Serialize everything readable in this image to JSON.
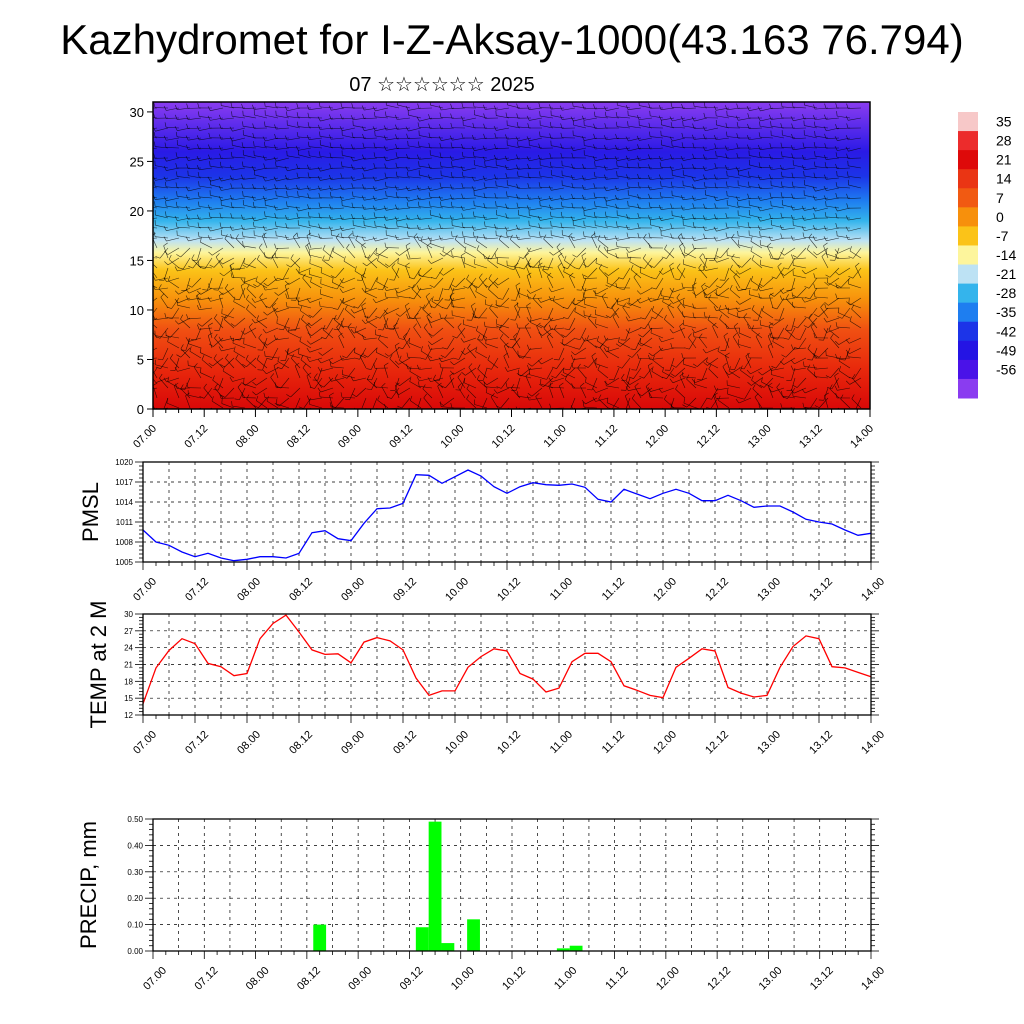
{
  "page": {
    "title": "Kazhydromet for I-Z-Aksay-1000(43.163 76.794)",
    "subtitle": "07 ☆☆☆☆☆☆ 2025"
  },
  "chart_data": [
    {
      "type": "heatmap",
      "description_of_overlay": "wind barbs",
      "y_ticks": [
        0,
        5,
        10,
        15,
        20,
        25,
        30
      ],
      "ylim": [
        0,
        31
      ],
      "x_tick_labels": [
        "07.00",
        "07.12",
        "08.00",
        "08.12",
        "09.00",
        "09.12",
        "10.00",
        "10.12",
        "11.00",
        "11.12",
        "12.00",
        "12.12",
        "13.00",
        "13.12",
        "14.00"
      ],
      "colorbar_labels": [
        "35",
        "28",
        "21",
        "14",
        "7",
        "0",
        "-7",
        "-14",
        "-21",
        "-28",
        "-35",
        "-42",
        "-49",
        "-56"
      ],
      "palette": [
        "#f7c8c8",
        "#ec2c2c",
        "#de0a0a",
        "#ea3514",
        "#f15a12",
        "#f7900c",
        "#fbc318",
        "#fdf59c",
        "#bde2f4",
        "#34b4ec",
        "#1e7ef0",
        "#1c34e8",
        "#2414e4",
        "#4a12e8",
        "#8a3cf0"
      ],
      "field_profile": [
        {
          "y": 0,
          "color": "#d90808"
        },
        {
          "y": 4,
          "color": "#e8280c"
        },
        {
          "y": 8,
          "color": "#f05012"
        },
        {
          "y": 11,
          "color": "#f7900c"
        },
        {
          "y": 14,
          "color": "#fbc318"
        },
        {
          "y": 15.8,
          "color": "#fdf59c"
        },
        {
          "y": 17,
          "color": "#bde2f4"
        },
        {
          "y": 19,
          "color": "#34b4ec"
        },
        {
          "y": 21,
          "color": "#1e7ef0"
        },
        {
          "y": 23.5,
          "color": "#1c34e8"
        },
        {
          "y": 26,
          "color": "#2a1ae6"
        },
        {
          "y": 31,
          "color": "#8a3cf0"
        }
      ]
    },
    {
      "type": "line",
      "ylabel": "PMSL",
      "ylim": [
        1005,
        1020
      ],
      "y_ticks": [
        1005,
        1008,
        1011,
        1014,
        1017,
        1020
      ],
      "x_tick_labels": [
        "07.00",
        "07.12",
        "08.00",
        "08.12",
        "09.00",
        "09.12",
        "10.00",
        "10.12",
        "11.00",
        "11.12",
        "12.00",
        "12.12",
        "13.00",
        "13.12",
        "14.00"
      ],
      "color": "#0000ff",
      "x": [
        0,
        3,
        6,
        9,
        12,
        15,
        18,
        21,
        24,
        27,
        30,
        33,
        36,
        39,
        42,
        45,
        48,
        51,
        54,
        57,
        60,
        63,
        66,
        69,
        72,
        75,
        78,
        81,
        84,
        87,
        90,
        93,
        96,
        99,
        102,
        105,
        108,
        111,
        114,
        117,
        120,
        123,
        126,
        129,
        132,
        135,
        138,
        141,
        144,
        147,
        150,
        153,
        156,
        159,
        162,
        165,
        168
      ],
      "values": [
        1009.8,
        1008,
        1007.5,
        1006.5,
        1005.8,
        1006.3,
        1005.6,
        1005.2,
        1005.4,
        1005.8,
        1005.8,
        1005.6,
        1006.3,
        1009.4,
        1009.7,
        1008.5,
        1008.2,
        1010.8,
        1013,
        1013.1,
        1013.8,
        1018.1,
        1018,
        1016.8,
        1017.8,
        1018.8,
        1017.9,
        1016.3,
        1015.3,
        1016.3,
        1016.9,
        1016.6,
        1016.5,
        1016.7,
        1016.2,
        1014.4,
        1014,
        1015.9,
        1015.2,
        1014.5,
        1015.3,
        1015.9,
        1015.3,
        1014.2,
        1014.2,
        1015,
        1014.2,
        1013.2,
        1013.4,
        1013.4,
        1012.5,
        1011.4,
        1011,
        1010.7,
        1009.8,
        1009,
        1009.3
      ]
    },
    {
      "type": "line",
      "ylabel": "TEMP at 2 M",
      "ylim": [
        12,
        30
      ],
      "y_ticks": [
        12,
        15,
        18,
        21,
        24,
        27,
        30
      ],
      "x_tick_labels": [
        "07.00",
        "07.12",
        "08.00",
        "08.12",
        "09.00",
        "09.12",
        "10.00",
        "10.12",
        "11.00",
        "11.12",
        "12.00",
        "12.12",
        "13.00",
        "13.12",
        "14.00"
      ],
      "color": "#ff0000",
      "x": [
        0,
        3,
        6,
        9,
        12,
        15,
        18,
        21,
        24,
        27,
        30,
        33,
        36,
        39,
        42,
        45,
        48,
        51,
        54,
        57,
        60,
        63,
        66,
        69,
        72,
        75,
        78,
        81,
        84,
        87,
        90,
        93,
        96,
        99,
        102,
        105,
        108,
        111,
        114,
        117,
        120,
        123,
        126,
        129,
        132,
        135,
        138,
        141,
        144,
        147,
        150,
        153,
        156,
        159,
        162,
        165,
        168
      ],
      "values": [
        14,
        20.4,
        23.5,
        25.6,
        24.7,
        21.2,
        20.6,
        19,
        19.4,
        25.6,
        28.3,
        29.8,
        26.8,
        23.6,
        22.8,
        22.9,
        21.3,
        25,
        25.8,
        25.2,
        23.6,
        18.6,
        15.5,
        16.3,
        16.3,
        20.5,
        22.4,
        23.8,
        23.4,
        19.4,
        18.4,
        16.1,
        16.8,
        21.5,
        23,
        23,
        21.5,
        17.2,
        16.4,
        15.5,
        15.1,
        20.5,
        22.1,
        23.8,
        23.4,
        16.9,
        15.9,
        15.2,
        15.5,
        20.5,
        24.2,
        26.1,
        25.6,
        20.6,
        20.4,
        19.6,
        18.8
      ]
    },
    {
      "type": "bar",
      "ylabel": "PRECIP, mm",
      "ylim": [
        0,
        0.5
      ],
      "y_ticks": [
        "0.00",
        "0.10",
        "0.20",
        "0.30",
        "0.40",
        "0.50"
      ],
      "x_tick_labels": [
        "07.00",
        "07.12",
        "08.00",
        "08.12",
        "09.00",
        "09.12",
        "10.00",
        "10.12",
        "11.00",
        "11.12",
        "12.00",
        "12.12",
        "13.00",
        "13.12",
        "14.00"
      ],
      "color": "#00ff00",
      "x": [
        39,
        63,
        66,
        69,
        75,
        96,
        99
      ],
      "values": [
        0.1,
        0.09,
        0.49,
        0.03,
        0.12,
        0.01,
        0.02
      ]
    }
  ]
}
